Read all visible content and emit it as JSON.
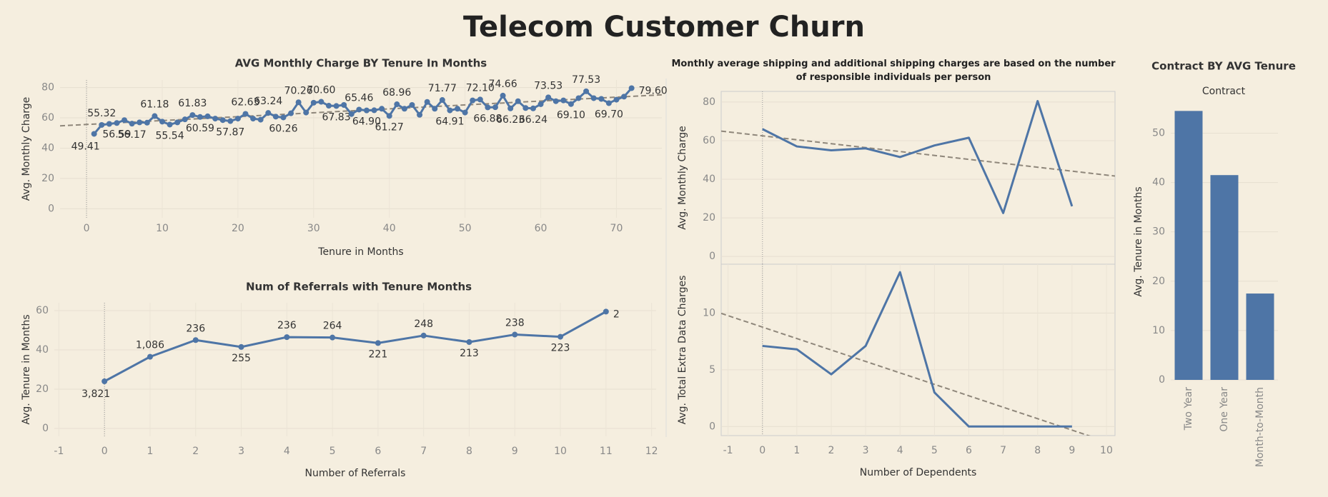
{
  "title": "Telecom Customer Churn",
  "chart_data": [
    {
      "type": "line",
      "title": "AVG Monthly Charge BY Tenure In Months",
      "xlabel": "Tenure in Months",
      "ylabel": "Avg. Monthly Charge",
      "x": [
        1,
        2,
        3,
        4,
        5,
        6,
        7,
        8,
        9,
        10,
        11,
        12,
        13,
        14,
        15,
        16,
        17,
        18,
        19,
        20,
        21,
        22,
        23,
        24,
        25,
        26,
        27,
        28,
        29,
        30,
        31,
        32,
        33,
        34,
        35,
        36,
        37,
        38,
        39,
        40,
        41,
        42,
        43,
        44,
        45,
        46,
        47,
        48,
        49,
        50,
        51,
        52,
        53,
        54,
        55,
        56,
        57,
        58,
        59,
        60,
        61,
        62,
        63,
        64,
        65,
        66,
        67,
        68,
        69,
        70,
        71,
        72
      ],
      "series": [
        {
          "color": "#4e75a6",
          "values": [
            49.41,
            55.32,
            56.0,
            56.59,
            58.5,
            56.17,
            57.0,
            56.8,
            61.18,
            57.5,
            55.54,
            57.0,
            59.0,
            61.83,
            60.59,
            61.0,
            59.5,
            58.5,
            57.87,
            59.5,
            62.63,
            59.5,
            58.8,
            63.24,
            60.8,
            60.26,
            63.0,
            70.26,
            63.5,
            70.0,
            70.6,
            68.0,
            67.83,
            68.5,
            62.5,
            65.46,
            64.9,
            65.0,
            66.0,
            61.27,
            68.96,
            66.0,
            68.5,
            62.0,
            70.5,
            66.0,
            71.77,
            64.91,
            66.0,
            63.5,
            71.5,
            72.1,
            66.88,
            67.0,
            74.66,
            66.23,
            71.0,
            66.5,
            66.24,
            69.0,
            73.53,
            71.0,
            71.5,
            69.1,
            73.0,
            77.53,
            73.0,
            72.5,
            69.7,
            72.0,
            74.0,
            79.6
          ],
          "value_labels": [
            "49.41",
            "55.32",
            null,
            "56.59",
            null,
            "56.17",
            null,
            null,
            "61.18",
            null,
            "55.54",
            null,
            null,
            "61.83",
            "60.59",
            null,
            null,
            null,
            "57.87",
            null,
            "62.63",
            null,
            null,
            "63.24",
            null,
            "60.26",
            null,
            "70.26",
            null,
            null,
            "70.60",
            null,
            "67.83",
            null,
            null,
            "65.46",
            "64.90",
            null,
            null,
            "61.27",
            "68.96",
            null,
            null,
            null,
            null,
            null,
            "71.77",
            "64.91",
            null,
            null,
            null,
            "72.10",
            "66.88",
            null,
            "74.66",
            "66.23",
            null,
            null,
            "66.24",
            null,
            "73.53",
            null,
            null,
            "69.10",
            null,
            "77.53",
            null,
            null,
            "69.70",
            null,
            null,
            "79.60"
          ]
        }
      ],
      "xlim": [
        -3.5,
        76
      ],
      "xticks": [
        0,
        10,
        20,
        30,
        40,
        50,
        60,
        70
      ],
      "ylim": [
        -6,
        85
      ],
      "yticks": [
        0,
        20,
        40,
        60,
        80
      ],
      "grid": true,
      "trend_line": true,
      "markers": true
    },
    {
      "type": "line",
      "title": "Num of Referrals with Tenure Months",
      "xlabel": "Number of Referrals",
      "ylabel": "Avg. Tenure in Months",
      "x": [
        0,
        1,
        2,
        3,
        4,
        5,
        6,
        7,
        8,
        9,
        10,
        11
      ],
      "series": [
        {
          "color": "#4e75a6",
          "values": [
            24,
            36.5,
            45,
            41.5,
            46.5,
            46.3,
            43.5,
            47.3,
            44,
            47.8,
            46.7,
            59.5
          ],
          "point_labels": [
            "3,821",
            "1,086",
            "236",
            "255",
            "236",
            "264",
            "221",
            "248",
            "213",
            "238",
            "223",
            "2"
          ]
        }
      ],
      "xlim": [
        -1.1,
        12.1
      ],
      "xticks": [
        -1,
        0,
        1,
        2,
        3,
        4,
        5,
        6,
        7,
        8,
        9,
        10,
        11,
        12
      ],
      "ylim": [
        -4,
        64
      ],
      "yticks": [
        0,
        20,
        40,
        60
      ],
      "grid": true,
      "markers": true
    },
    {
      "type": "line",
      "title": "Monthly average shipping and additional shipping charges are based on the number of responsible individuals per person",
      "ylabel": "Avg. Monthly Charge",
      "x": [
        0,
        1,
        2,
        3,
        4,
        5,
        6,
        7,
        8,
        9
      ],
      "series": [
        {
          "color": "#4e75a6",
          "values": [
            66,
            57,
            55,
            56,
            51.5,
            57.5,
            61.5,
            22.5,
            80.5,
            26
          ]
        }
      ],
      "xlim": [
        -1.2,
        10.25
      ],
      "ylim": [
        -4,
        85.5
      ],
      "yticks": [
        0,
        20,
        40,
        60,
        80
      ],
      "grid": true,
      "trend_line": true
    },
    {
      "type": "line",
      "xlabel": "Number of Dependents",
      "ylabel": "Avg. Total Extra Data Charges",
      "x": [
        0,
        1,
        2,
        3,
        4,
        5,
        6,
        7,
        8,
        9
      ],
      "series": [
        {
          "color": "#4e75a6",
          "values": [
            7.1,
            6.8,
            4.6,
            7.1,
            13.6,
            3,
            0,
            0,
            0,
            0
          ]
        }
      ],
      "xlim": [
        -1.2,
        10.25
      ],
      "xticks": [
        -1,
        0,
        1,
        2,
        3,
        4,
        5,
        6,
        7,
        8,
        9,
        10
      ],
      "ylim": [
        -0.8,
        14.3
      ],
      "yticks": [
        0,
        5,
        10
      ],
      "grid": true,
      "trend_line": true
    },
    {
      "type": "bar",
      "title": "Contract BY AVG Tenure",
      "subtitle": "Contract",
      "ylabel": "Avg. Tenure in Months",
      "categories": [
        "Two Year",
        "One Year",
        "Month-to-Month"
      ],
      "values": [
        54.5,
        41.5,
        17.5
      ],
      "color": "#4e75a6",
      "ylim": [
        0,
        56
      ],
      "yticks": [
        0,
        10,
        20,
        30,
        40,
        50
      ],
      "grid": true
    }
  ]
}
